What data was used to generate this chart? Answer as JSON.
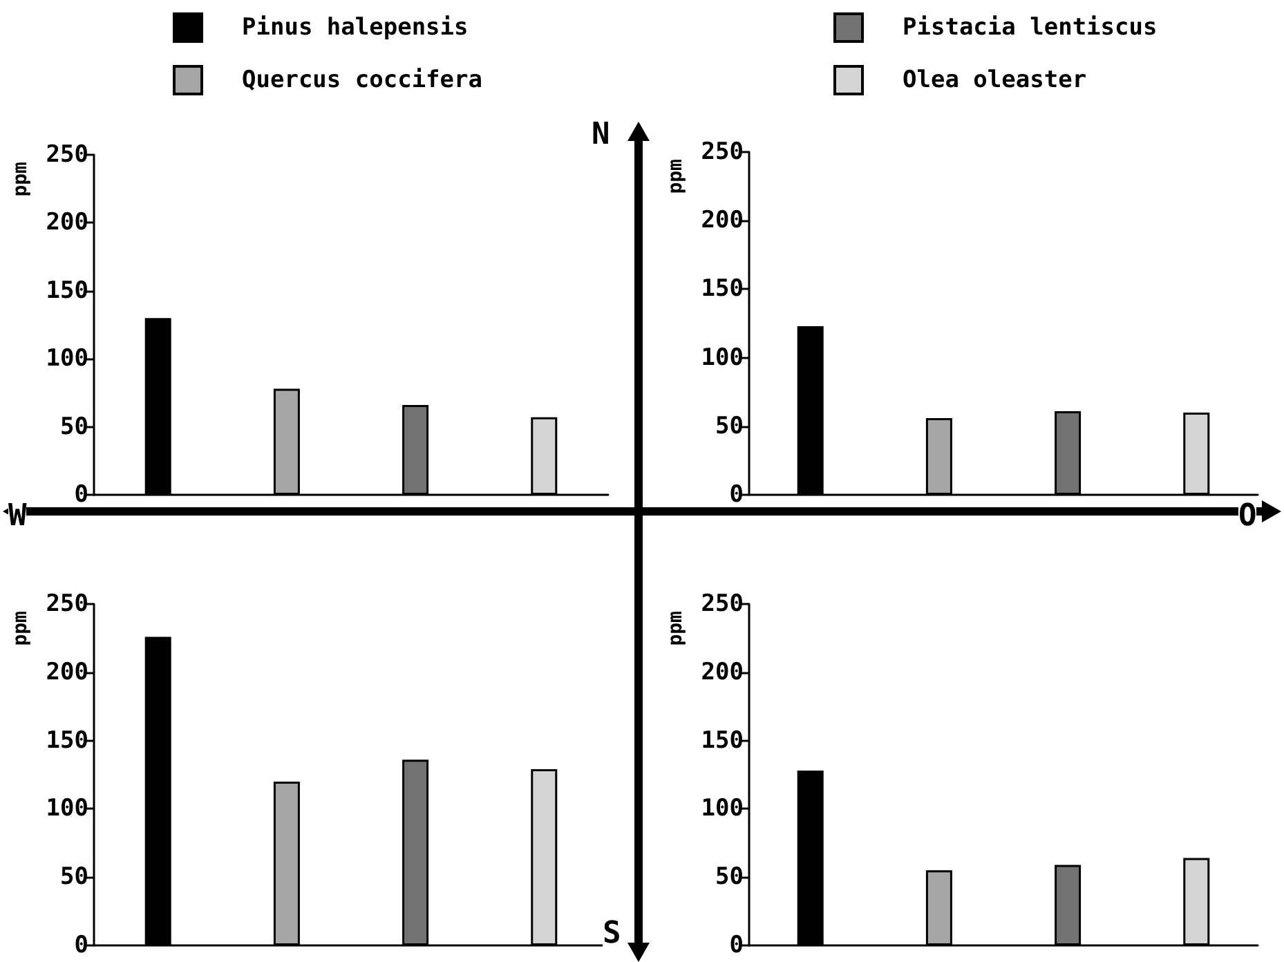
{
  "chart_data": [
    {
      "type": "bar",
      "categories": [
        null
      ],
      "ylabel": "ppm",
      "ylim": [
        0,
        250
      ],
      "yticks": [
        0,
        50,
        100,
        150,
        200,
        250
      ],
      "grid": false,
      "legend": "top",
      "annotations": [
        "N",
        "W",
        "O",
        "S"
      ],
      "series": [
        {
          "name": "Pinus halepensis",
          "color": "#000000",
          "values": [
            130
          ]
        },
        {
          "name": "Quercus coccifera",
          "color": "#a6a6a6",
          "values": [
            78
          ]
        },
        {
          "name": "Pistacia lentiscus",
          "color": "#737373",
          "values": [
            66
          ]
        },
        {
          "name": "Olea oleaster",
          "color": "#d4d4d4",
          "values": [
            57
          ]
        }
      ]
    },
    {
      "type": "bar",
      "categories": [
        null
      ],
      "ylabel": "ppm",
      "ylim": [
        0,
        250
      ],
      "yticks": [
        0,
        50,
        100,
        150,
        200,
        250
      ],
      "grid": false,
      "series": [
        {
          "color": "#000000",
          "values": [
            123
          ]
        },
        {
          "color": "#a6a6a6",
          "values": [
            56
          ]
        },
        {
          "color": "#737373",
          "values": [
            61
          ]
        },
        {
          "color": "#d4d4d4",
          "values": [
            60
          ]
        }
      ]
    },
    {
      "type": "bar",
      "categories": [
        null
      ],
      "ylabel": "ppm",
      "ylim": [
        0,
        250
      ],
      "yticks": [
        0,
        50,
        100,
        150,
        200,
        250
      ],
      "grid": false,
      "series": [
        {
          "color": "#000000",
          "values": [
            226
          ]
        },
        {
          "color": "#a6a6a6",
          "values": [
            120
          ]
        },
        {
          "color": "#737373",
          "values": [
            136
          ]
        },
        {
          "color": "#d4d4d4",
          "values": [
            129
          ]
        }
      ]
    },
    {
      "type": "bar",
      "categories": [
        null
      ],
      "ylabel": "ppm",
      "ylim": [
        0,
        250
      ],
      "yticks": [
        0,
        50,
        100,
        150,
        200,
        250
      ],
      "grid": false,
      "series": [
        {
          "color": "#000000",
          "values": [
            128
          ]
        },
        {
          "color": "#a6a6a6",
          "values": [
            55
          ]
        },
        {
          "color": "#737373",
          "values": [
            59
          ]
        },
        {
          "color": "#d4d4d4",
          "values": [
            64
          ]
        }
      ]
    }
  ]
}
